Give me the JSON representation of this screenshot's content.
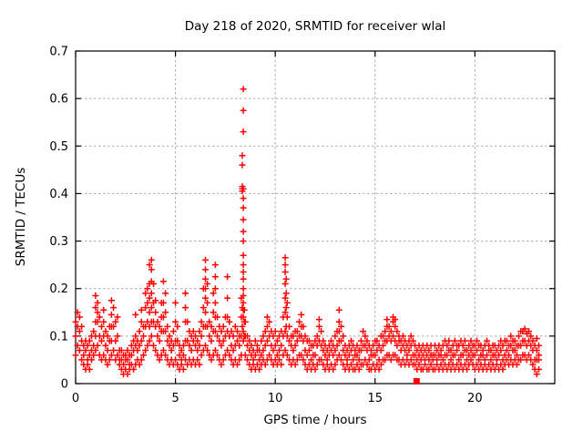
{
  "page": {
    "background": "#ffffff"
  },
  "chart_data": {
    "type": "scatter",
    "title": "Day 218 of 2020, SRMTID for receiver wlal",
    "xlabel": "GPS time / hours",
    "ylabel": "SRMTID / TECUs",
    "xlim": [
      0,
      24
    ],
    "ylim": [
      0,
      0.7
    ],
    "xticks": [
      0,
      5,
      10,
      15,
      20
    ],
    "yticks": [
      0,
      0.1,
      0.2,
      0.3,
      0.4,
      0.5,
      0.6,
      0.7
    ],
    "grid": true,
    "legend": "none",
    "marker": "plus",
    "marker_size": 7,
    "marker_color": "#ff0000",
    "grid_color": "#aaaaaa",
    "axis_color": "#000000",
    "outlier_square": {
      "x": 17.08,
      "y": 0.005
    },
    "columns": [
      [
        0.0,
        0.1,
        0.13,
        0.06
      ],
      [
        0.1,
        0.08,
        0.15,
        0.12
      ],
      [
        0.2,
        0.07,
        0.11,
        0.14
      ],
      [
        0.3,
        0.05,
        0.09,
        0.12
      ],
      [
        0.4,
        0.04,
        0.08,
        0.06
      ],
      [
        0.5,
        0.03,
        0.07,
        0.09
      ],
      [
        0.6,
        0.05,
        0.08,
        0.04
      ],
      [
        0.7,
        0.06,
        0.09,
        0.03
      ],
      [
        0.8,
        0.05,
        0.1,
        0.07
      ],
      [
        0.9,
        0.06,
        0.11,
        0.08
      ],
      [
        1.0,
        0.07,
        0.1,
        0.13,
        0.16,
        0.185
      ],
      [
        1.1,
        0.08,
        0.13,
        0.17,
        0.15
      ],
      [
        1.2,
        0.06,
        0.1,
        0.14
      ],
      [
        1.3,
        0.05,
        0.09,
        0.12
      ],
      [
        1.4,
        0.06,
        0.1,
        0.155,
        0.13
      ],
      [
        1.5,
        0.05,
        0.08,
        0.11
      ],
      [
        1.6,
        0.04,
        0.07,
        0.1
      ],
      [
        1.7,
        0.05,
        0.09,
        0.12
      ],
      [
        1.8,
        0.06,
        0.09,
        0.12,
        0.145,
        0.175
      ],
      [
        1.9,
        0.07,
        0.12,
        0.16
      ],
      [
        2.0,
        0.05,
        0.09,
        0.13
      ],
      [
        2.1,
        0.06,
        0.1,
        0.14
      ],
      [
        2.2,
        0.04,
        0.07,
        0.05
      ],
      [
        2.3,
        0.03,
        0.05,
        0.07
      ],
      [
        2.4,
        0.02,
        0.04,
        0.06
      ],
      [
        2.5,
        0.03,
        0.06,
        0.05
      ],
      [
        2.6,
        0.02,
        0.05,
        0.07
      ],
      [
        2.7,
        0.03,
        0.04,
        0.06
      ],
      [
        2.8,
        0.04,
        0.06,
        0.08
      ],
      [
        2.9,
        0.03,
        0.07,
        0.09
      ],
      [
        3.0,
        0.04,
        0.08,
        0.1,
        0.145
      ],
      [
        3.1,
        0.05,
        0.07,
        0.09
      ],
      [
        3.2,
        0.04,
        0.08,
        0.11
      ],
      [
        3.3,
        0.05,
        0.09,
        0.13,
        0.155
      ],
      [
        3.4,
        0.06,
        0.1,
        0.12
      ],
      [
        3.5,
        0.07,
        0.12,
        0.16,
        0.19
      ],
      [
        3.6,
        0.08,
        0.13,
        0.17,
        0.2
      ],
      [
        3.7,
        0.09,
        0.12,
        0.15,
        0.18,
        0.21,
        0.25
      ],
      [
        3.8,
        0.1,
        0.13,
        0.16,
        0.19,
        0.215,
        0.24,
        0.26
      ],
      [
        3.9,
        0.08,
        0.13,
        0.17,
        0.21
      ],
      [
        4.0,
        0.07,
        0.12,
        0.15,
        0.175
      ],
      [
        4.1,
        0.06,
        0.1,
        0.13
      ],
      [
        4.2,
        0.05,
        0.09,
        0.12
      ],
      [
        4.3,
        0.06,
        0.11,
        0.14,
        0.17
      ],
      [
        4.4,
        0.07,
        0.11,
        0.14,
        0.17,
        0.215
      ],
      [
        4.5,
        0.06,
        0.11,
        0.15,
        0.19
      ],
      [
        4.6,
        0.05,
        0.09,
        0.12
      ],
      [
        4.7,
        0.04,
        0.08,
        0.1
      ],
      [
        4.8,
        0.05,
        0.07,
        0.09
      ],
      [
        4.9,
        0.04,
        0.08,
        0.11
      ],
      [
        5.0,
        0.05,
        0.09,
        0.13,
        0.17
      ],
      [
        5.1,
        0.04,
        0.09,
        0.12
      ],
      [
        5.2,
        0.03,
        0.06,
        0.08
      ],
      [
        5.3,
        0.04,
        0.05,
        0.07
      ],
      [
        5.4,
        0.03,
        0.06,
        0.08
      ],
      [
        5.5,
        0.05,
        0.09,
        0.13,
        0.16,
        0.19
      ],
      [
        5.6,
        0.04,
        0.09,
        0.13
      ],
      [
        5.7,
        0.05,
        0.08,
        0.11
      ],
      [
        5.8,
        0.04,
        0.07,
        0.1
      ],
      [
        5.9,
        0.05,
        0.09,
        0.11
      ],
      [
        6.0,
        0.04,
        0.08,
        0.1
      ],
      [
        6.1,
        0.05,
        0.07,
        0.09
      ],
      [
        6.2,
        0.04,
        0.08,
        0.11
      ],
      [
        6.3,
        0.06,
        0.1,
        0.13
      ],
      [
        6.4,
        0.07,
        0.12,
        0.16,
        0.2
      ],
      [
        6.5,
        0.08,
        0.12,
        0.15,
        0.18,
        0.2,
        0.22,
        0.24,
        0.26
      ],
      [
        6.6,
        0.07,
        0.12,
        0.17,
        0.21
      ],
      [
        6.7,
        0.06,
        0.1,
        0.13
      ],
      [
        6.8,
        0.05,
        0.09,
        0.12
      ],
      [
        6.9,
        0.06,
        0.11,
        0.15,
        0.19
      ],
      [
        7.0,
        0.07,
        0.11,
        0.14,
        0.17,
        0.2,
        0.225,
        0.25
      ],
      [
        7.1,
        0.06,
        0.1,
        0.14
      ],
      [
        7.2,
        0.05,
        0.09,
        0.12
      ],
      [
        7.3,
        0.04,
        0.08,
        0.11
      ],
      [
        7.4,
        0.05,
        0.09,
        0.12
      ],
      [
        7.5,
        0.06,
        0.1,
        0.14
      ],
      [
        7.6,
        0.07,
        0.11,
        0.14,
        0.18,
        0.225
      ],
      [
        7.7,
        0.06,
        0.1,
        0.13
      ],
      [
        7.8,
        0.05,
        0.08,
        0.11
      ],
      [
        7.9,
        0.04,
        0.07,
        0.1
      ],
      [
        8.0,
        0.05,
        0.08,
        0.12
      ],
      [
        8.1,
        0.04,
        0.09,
        0.11
      ],
      [
        8.2,
        0.05,
        0.08,
        0.1
      ],
      [
        8.3,
        0.06,
        0.1,
        0.14,
        0.18
      ],
      [
        8.35,
        0.12,
        0.16,
        0.405,
        0.41,
        0.415,
        0.46,
        0.48
      ],
      [
        8.4,
        0.62,
        0.575,
        0.53,
        0.41,
        0.39,
        0.37,
        0.345,
        0.32,
        0.3,
        0.27,
        0.25,
        0.235,
        0.22,
        0.2,
        0.185,
        0.17,
        0.155,
        0.14,
        0.11,
        0.09
      ],
      [
        8.45,
        0.1,
        0.13,
        0.155
      ],
      [
        8.5,
        0.06,
        0.1,
        0.13
      ],
      [
        8.6,
        0.05,
        0.08,
        0.1
      ],
      [
        8.7,
        0.04,
        0.07,
        0.09
      ],
      [
        8.8,
        0.03,
        0.06,
        0.08
      ],
      [
        8.9,
        0.04,
        0.05,
        0.07
      ],
      [
        9.0,
        0.03,
        0.06,
        0.09
      ],
      [
        9.1,
        0.04,
        0.07,
        0.08
      ],
      [
        9.2,
        0.03,
        0.05,
        0.07
      ],
      [
        9.3,
        0.04,
        0.06,
        0.09
      ],
      [
        9.4,
        0.05,
        0.07,
        0.1
      ],
      [
        9.5,
        0.04,
        0.08,
        0.11
      ],
      [
        9.6,
        0.05,
        0.09,
        0.12,
        0.14
      ],
      [
        9.7,
        0.06,
        0.1,
        0.13
      ],
      [
        9.8,
        0.05,
        0.08,
        0.11
      ],
      [
        9.9,
        0.04,
        0.07,
        0.1
      ],
      [
        10.0,
        0.05,
        0.08,
        0.11
      ],
      [
        10.1,
        0.04,
        0.06,
        0.09
      ],
      [
        10.2,
        0.05,
        0.07,
        0.1
      ],
      [
        10.3,
        0.04,
        0.08,
        0.11
      ],
      [
        10.4,
        0.06,
        0.1,
        0.14
      ],
      [
        10.5,
        0.07,
        0.11,
        0.15,
        0.18,
        0.21,
        0.235,
        0.25,
        0.265
      ],
      [
        10.55,
        0.12,
        0.16,
        0.19,
        0.22
      ],
      [
        10.6,
        0.06,
        0.1,
        0.14,
        0.17
      ],
      [
        10.7,
        0.05,
        0.09,
        0.12
      ],
      [
        10.8,
        0.04,
        0.08,
        0.1
      ],
      [
        10.9,
        0.05,
        0.07,
        0.1
      ],
      [
        11.0,
        0.04,
        0.08,
        0.11
      ],
      [
        11.1,
        0.05,
        0.09,
        0.11
      ],
      [
        11.2,
        0.06,
        0.1,
        0.13
      ],
      [
        11.3,
        0.06,
        0.1,
        0.12,
        0.145
      ],
      [
        11.4,
        0.05,
        0.09,
        0.12
      ],
      [
        11.5,
        0.04,
        0.07,
        0.1
      ],
      [
        11.6,
        0.03,
        0.06,
        0.09
      ],
      [
        11.7,
        0.04,
        0.07,
        0.09
      ],
      [
        11.8,
        0.03,
        0.05,
        0.08
      ],
      [
        11.9,
        0.04,
        0.06,
        0.08
      ],
      [
        12.0,
        0.03,
        0.06,
        0.09
      ],
      [
        12.1,
        0.04,
        0.08,
        0.1
      ],
      [
        12.2,
        0.05,
        0.09,
        0.12,
        0.135
      ],
      [
        12.3,
        0.05,
        0.08,
        0.11
      ],
      [
        12.4,
        0.04,
        0.07,
        0.09
      ],
      [
        12.5,
        0.03,
        0.06,
        0.08
      ],
      [
        12.6,
        0.04,
        0.05,
        0.07
      ],
      [
        12.7,
        0.03,
        0.06,
        0.08
      ],
      [
        12.8,
        0.04,
        0.07,
        0.09
      ],
      [
        12.9,
        0.03,
        0.06,
        0.08
      ],
      [
        13.0,
        0.04,
        0.07,
        0.1
      ],
      [
        13.1,
        0.05,
        0.08,
        0.11
      ],
      [
        13.2,
        0.06,
        0.09,
        0.11,
        0.13,
        0.155
      ],
      [
        13.3,
        0.05,
        0.09,
        0.12
      ],
      [
        13.4,
        0.04,
        0.07,
        0.1
      ],
      [
        13.5,
        0.03,
        0.06,
        0.08
      ],
      [
        13.6,
        0.04,
        0.05,
        0.07
      ],
      [
        13.7,
        0.03,
        0.06,
        0.08
      ],
      [
        13.8,
        0.04,
        0.07,
        0.09
      ],
      [
        13.9,
        0.03,
        0.05,
        0.08
      ],
      [
        14.0,
        0.03,
        0.06,
        0.07
      ],
      [
        14.1,
        0.04,
        0.06,
        0.08
      ],
      [
        14.2,
        0.03,
        0.05,
        0.07
      ],
      [
        14.3,
        0.04,
        0.07,
        0.09
      ],
      [
        14.4,
        0.04,
        0.08,
        0.11
      ],
      [
        14.5,
        0.05,
        0.08,
        0.1
      ],
      [
        14.6,
        0.04,
        0.07,
        0.09
      ],
      [
        14.7,
        0.03,
        0.05,
        0.08
      ],
      [
        14.8,
        0.03,
        0.06,
        0.07
      ],
      [
        14.9,
        0.04,
        0.06,
        0.08
      ],
      [
        15.0,
        0.03,
        0.06,
        0.09
      ],
      [
        15.1,
        0.04,
        0.07,
        0.09
      ],
      [
        15.2,
        0.03,
        0.05,
        0.08
      ],
      [
        15.3,
        0.04,
        0.07,
        0.1
      ],
      [
        15.4,
        0.05,
        0.08,
        0.1
      ],
      [
        15.5,
        0.05,
        0.09,
        0.11
      ],
      [
        15.6,
        0.06,
        0.09,
        0.12,
        0.135
      ],
      [
        15.7,
        0.06,
        0.1,
        0.12
      ],
      [
        15.8,
        0.05,
        0.09,
        0.11
      ],
      [
        15.9,
        0.06,
        0.1,
        0.13,
        0.14
      ],
      [
        16.0,
        0.06,
        0.09,
        0.12,
        0.135
      ],
      [
        16.1,
        0.05,
        0.08,
        0.11
      ],
      [
        16.2,
        0.05,
        0.09,
        0.1
      ],
      [
        16.3,
        0.04,
        0.07,
        0.09
      ],
      [
        16.4,
        0.05,
        0.08,
        0.1
      ],
      [
        16.5,
        0.04,
        0.07,
        0.09
      ],
      [
        16.6,
        0.05,
        0.06,
        0.08
      ],
      [
        16.7,
        0.04,
        0.07,
        0.09
      ],
      [
        16.8,
        0.05,
        0.08,
        0.1
      ],
      [
        16.9,
        0.04,
        0.06,
        0.09
      ],
      [
        17.0,
        0.04,
        0.06,
        0.08
      ],
      [
        17.1,
        0.03,
        0.05,
        0.07
      ],
      [
        17.2,
        0.04,
        0.06,
        0.08
      ],
      [
        17.3,
        0.03,
        0.05,
        0.07
      ],
      [
        17.4,
        0.03,
        0.06,
        0.08
      ],
      [
        17.5,
        0.04,
        0.05,
        0.07
      ],
      [
        17.6,
        0.03,
        0.06,
        0.08
      ],
      [
        17.7,
        0.03,
        0.05,
        0.07
      ],
      [
        17.8,
        0.04,
        0.06,
        0.08
      ],
      [
        17.9,
        0.03,
        0.05,
        0.06
      ],
      [
        18.0,
        0.03,
        0.06,
        0.08
      ],
      [
        18.1,
        0.04,
        0.05,
        0.07
      ],
      [
        18.2,
        0.03,
        0.06,
        0.08
      ],
      [
        18.3,
        0.04,
        0.06,
        0.07
      ],
      [
        18.4,
        0.03,
        0.05,
        0.08
      ],
      [
        18.5,
        0.04,
        0.06,
        0.09
      ],
      [
        18.6,
        0.03,
        0.06,
        0.08
      ],
      [
        18.7,
        0.04,
        0.07,
        0.09
      ],
      [
        18.8,
        0.03,
        0.05,
        0.07
      ],
      [
        18.9,
        0.04,
        0.06,
        0.08
      ],
      [
        19.0,
        0.03,
        0.06,
        0.09
      ],
      [
        19.1,
        0.04,
        0.07,
        0.08
      ],
      [
        19.2,
        0.03,
        0.05,
        0.08
      ],
      [
        19.3,
        0.04,
        0.06,
        0.09
      ],
      [
        19.4,
        0.03,
        0.06,
        0.08
      ],
      [
        19.5,
        0.04,
        0.07,
        0.09
      ],
      [
        19.6,
        0.03,
        0.05,
        0.07
      ],
      [
        19.7,
        0.04,
        0.06,
        0.08
      ],
      [
        19.8,
        0.05,
        0.07,
        0.09
      ],
      [
        19.9,
        0.04,
        0.06,
        0.08
      ],
      [
        20.0,
        0.03,
        0.06,
        0.08
      ],
      [
        20.1,
        0.04,
        0.07,
        0.09
      ],
      [
        20.2,
        0.03,
        0.05,
        0.08
      ],
      [
        20.3,
        0.04,
        0.06,
        0.08
      ],
      [
        20.4,
        0.03,
        0.06,
        0.07
      ],
      [
        20.5,
        0.04,
        0.05,
        0.08
      ],
      [
        20.6,
        0.03,
        0.06,
        0.09
      ],
      [
        20.7,
        0.04,
        0.07,
        0.08
      ],
      [
        20.8,
        0.03,
        0.05,
        0.07
      ],
      [
        20.9,
        0.04,
        0.06,
        0.08
      ],
      [
        21.0,
        0.03,
        0.06,
        0.08
      ],
      [
        21.1,
        0.04,
        0.05,
        0.07
      ],
      [
        21.2,
        0.03,
        0.06,
        0.08
      ],
      [
        21.3,
        0.04,
        0.07,
        0.09
      ],
      [
        21.4,
        0.03,
        0.05,
        0.08
      ],
      [
        21.5,
        0.04,
        0.06,
        0.09
      ],
      [
        21.6,
        0.05,
        0.07,
        0.09
      ],
      [
        21.7,
        0.04,
        0.06,
        0.08
      ],
      [
        21.8,
        0.05,
        0.08,
        0.1
      ],
      [
        21.9,
        0.04,
        0.07,
        0.09
      ],
      [
        22.0,
        0.05,
        0.07,
        0.09
      ],
      [
        22.1,
        0.04,
        0.06,
        0.08
      ],
      [
        22.2,
        0.05,
        0.08,
        0.1
      ],
      [
        22.3,
        0.05,
        0.08,
        0.11
      ],
      [
        22.4,
        0.06,
        0.09,
        0.11
      ],
      [
        22.5,
        0.06,
        0.09,
        0.115
      ],
      [
        22.6,
        0.05,
        0.08,
        0.105
      ],
      [
        22.7,
        0.06,
        0.09,
        0.11
      ],
      [
        22.8,
        0.05,
        0.08,
        0.1
      ],
      [
        22.9,
        0.04,
        0.07,
        0.09
      ],
      [
        23.0,
        0.03,
        0.05,
        0.08
      ],
      [
        23.1,
        0.02,
        0.05,
        0.07,
        0.095
      ],
      [
        23.2,
        0.03,
        0.05,
        0.06,
        0.08
      ]
    ]
  }
}
